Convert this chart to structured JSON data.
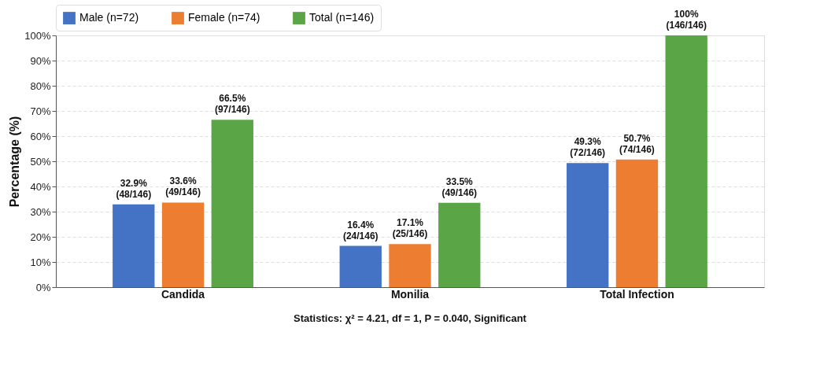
{
  "chart_data": {
    "type": "bar",
    "ylabel": "Percentage (%)",
    "categories": [
      "Candida",
      "Monilia",
      "Total Infection"
    ],
    "series": [
      {
        "name": "Male (n=72)",
        "color": "#4472c4",
        "values": [
          32.9,
          16.4,
          49.3
        ],
        "value_labels": [
          "32.9%\n(48/146)",
          "16.4%\n(24/146)",
          "49.3%\n(72/146)"
        ]
      },
      {
        "name": "Female (n=74)",
        "color": "#ed7d31",
        "values": [
          33.6,
          17.1,
          50.7
        ],
        "value_labels": [
          "33.6%\n(49/146)",
          "17.1%\n(25/146)",
          "50.7%\n(74/146)"
        ]
      },
      {
        "name": "Total (n=146)",
        "color": "#5aa646",
        "values": [
          66.5,
          33.5,
          100
        ],
        "value_labels": [
          "66.5%\n(97/146)",
          "33.5%\n(49/146)",
          "100%\n(146/146)"
        ]
      }
    ],
    "ylim": [
      0,
      100
    ],
    "yticks": [
      {
        "value": 0,
        "label": "0%"
      },
      {
        "value": 10,
        "label": "10%"
      },
      {
        "value": 20,
        "label": "20%"
      },
      {
        "value": 30,
        "label": "30%"
      },
      {
        "value": 40,
        "label": "40%"
      },
      {
        "value": 50,
        "label": "50%"
      },
      {
        "value": 60,
        "label": "60%"
      },
      {
        "value": 70,
        "label": "70%"
      },
      {
        "value": 80,
        "label": "80%"
      },
      {
        "value": 90,
        "label": "90%"
      },
      {
        "value": 100,
        "label": "100%"
      }
    ],
    "grid": "y",
    "legend": "top",
    "annotations": [
      "Statistics: χ² = 4.21, df = 1, P = 0.040, Significant"
    ]
  }
}
